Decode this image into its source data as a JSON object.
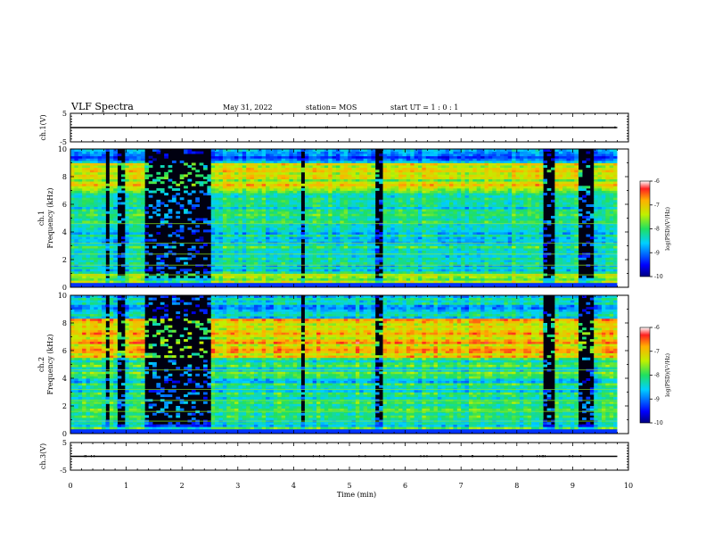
{
  "header": {
    "title": "VLF Spectra",
    "date": "May 31, 2022",
    "station": "station= MOS",
    "start": "start  UT =   1 : 0  : 1"
  },
  "chart_data": [
    {
      "type": "line",
      "name": "ch1-voltage",
      "ylabel": "ch.1(V)",
      "ylim": [
        -5,
        5
      ],
      "yticks": [
        "5",
        "-5"
      ],
      "xlim": [
        0,
        10
      ],
      "x": [
        0,
        9.8
      ],
      "y": [
        0,
        0
      ]
    },
    {
      "type": "heatmap",
      "name": "ch1-spectrogram",
      "ylabel_channel": "ch.1",
      "ylabel": "Frequency (kHz)",
      "ylim": [
        0,
        10
      ],
      "yticks": [
        "0",
        "2",
        "4",
        "6",
        "8",
        "10"
      ],
      "xlim": [
        0,
        9.8
      ],
      "colorbar": {
        "label": "log(PSD)(V²/Hz)",
        "range": [
          -10,
          -6
        ],
        "ticks": [
          "-6",
          "-7",
          "-8",
          "-9",
          "-10"
        ]
      },
      "low_activity_minutes": [
        [
          0.6,
          0.7
        ],
        [
          0.85,
          0.95
        ],
        [
          1.3,
          2.55
        ],
        [
          4.1,
          4.2
        ],
        [
          5.45,
          5.6
        ],
        [
          8.5,
          8.7
        ],
        [
          9.1,
          9.35
        ]
      ],
      "dominant_level_by_band_kHz": [
        [
          0,
          1,
          -7.6
        ],
        [
          1,
          4,
          -8.3
        ],
        [
          4,
          7,
          -8.2
        ],
        [
          7,
          9,
          -7.3
        ],
        [
          9,
          10,
          -9.0
        ]
      ]
    },
    {
      "type": "heatmap",
      "name": "ch2-spectrogram",
      "ylabel_channel": "ch.2",
      "ylabel": "Frequency (kHz)",
      "ylim": [
        0,
        10
      ],
      "yticks": [
        "0",
        "2",
        "4",
        "6",
        "8",
        "10"
      ],
      "xlim": [
        0,
        9.8
      ],
      "colorbar": {
        "label": "log(PSD)(V²/Hz)",
        "range": [
          -10,
          -6
        ],
        "ticks": [
          "-6",
          "-7",
          "-8",
          "-9",
          "-10"
        ]
      },
      "low_activity_minutes": [
        [
          0.6,
          0.7
        ],
        [
          0.85,
          0.95
        ],
        [
          1.3,
          2.55
        ],
        [
          4.1,
          4.2
        ],
        [
          5.45,
          5.6
        ],
        [
          8.5,
          8.7
        ],
        [
          9.1,
          9.35
        ]
      ],
      "dominant_level_by_band_kHz": [
        [
          0,
          1,
          -8.2
        ],
        [
          1,
          4,
          -8.3
        ],
        [
          4,
          5.5,
          -8.1
        ],
        [
          5.5,
          8.3,
          -7.0
        ],
        [
          8.3,
          10,
          -8.6
        ]
      ]
    },
    {
      "type": "line",
      "name": "ch3-voltage",
      "ylabel": "ch.3(V)",
      "ylim": [
        -5,
        5
      ],
      "yticks": [
        "5",
        "-5"
      ],
      "xlim": [
        0,
        10
      ],
      "x": [
        0,
        9.8
      ],
      "y": [
        0,
        0
      ]
    }
  ],
  "xaxis": {
    "label": "Time  (min)",
    "ticks": [
      "0",
      "1",
      "2",
      "3",
      "4",
      "5",
      "6",
      "7",
      "8",
      "9",
      "10"
    ]
  }
}
